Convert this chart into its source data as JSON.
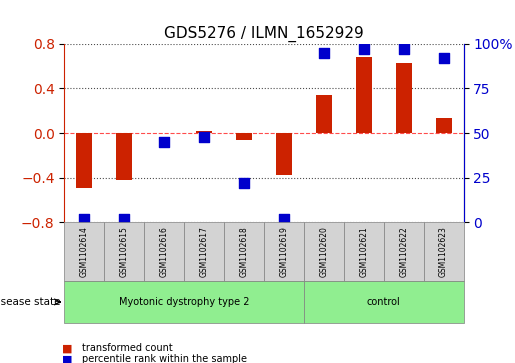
{
  "title": "GDS5276 / ILMN_1652929",
  "samples": [
    "GSM1102614",
    "GSM1102615",
    "GSM1102616",
    "GSM1102617",
    "GSM1102618",
    "GSM1102619",
    "GSM1102620",
    "GSM1102621",
    "GSM1102622",
    "GSM1102623"
  ],
  "red_values": [
    -0.49,
    -0.42,
    0.0,
    0.02,
    -0.06,
    -0.38,
    0.34,
    0.68,
    0.63,
    0.13
  ],
  "blue_values": [
    2.0,
    2.0,
    45.0,
    48.0,
    22.0,
    2.0,
    95.0,
    97.0,
    97.0,
    92.0
  ],
  "disease_groups": [
    {
      "label": "Myotonic dystrophy type 2",
      "start": 0,
      "end": 6,
      "color": "#90EE90"
    },
    {
      "label": "control",
      "start": 6,
      "end": 10,
      "color": "#90EE90"
    }
  ],
  "left_ylim": [
    -0.8,
    0.8
  ],
  "right_ylim": [
    0,
    100
  ],
  "left_yticks": [
    -0.8,
    -0.4,
    0.0,
    0.4,
    0.8
  ],
  "right_yticks": [
    0,
    25,
    50,
    75,
    100
  ],
  "right_yticklabels": [
    "0",
    "25",
    "50",
    "75",
    "100%"
  ],
  "bar_color": "#CC2200",
  "dot_color": "#0000CC",
  "legend_red": "transformed count",
  "legend_blue": "percentile rank within the sample",
  "disease_state_label": "disease state",
  "bg_color": "#FFFFFF",
  "plot_bg_color": "#FFFFFF",
  "grid_color": "#000000",
  "bar_width": 0.4,
  "dot_size": 60
}
